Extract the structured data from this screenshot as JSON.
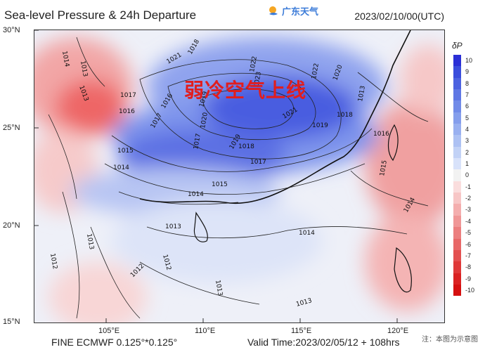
{
  "header": {
    "title": "Sea-level Pressure & 24h Departure",
    "logo_text": "广东天气",
    "datetime": "2023/02/10/00(UTC)"
  },
  "overlay_text": "弱冷空气上线",
  "axes": {
    "lat_labels": [
      "30°N",
      "25°N",
      "20°N",
      "15°N"
    ],
    "lon_labels": [
      "105°E",
      "110°E",
      "115°E",
      "120°E"
    ]
  },
  "footer": {
    "model": "FINE ECMWF 0.125°*0.125°",
    "valid_time": "Valid Time:2023/02/05/12 + 108hrs",
    "note": "注：本图为示意图"
  },
  "colorbar": {
    "title": "δP",
    "levels": [
      "10",
      "9",
      "8",
      "7",
      "6",
      "5",
      "4",
      "3",
      "2",
      "1",
      "0",
      "-1",
      "-2",
      "-3",
      "-4",
      "-5",
      "-6",
      "-7",
      "-8",
      "-9",
      "-10"
    ],
    "colors": [
      "#2b2fd6",
      "#3a4ddc",
      "#4c62e0",
      "#5f77e4",
      "#718be8",
      "#859eec",
      "#99b0f0",
      "#adc1f3",
      "#c2d2f6",
      "#d8e2fa",
      "#f2f2f2",
      "#fadddd",
      "#f7c6c6",
      "#f4aeae",
      "#f09797",
      "#ec7f7f",
      "#e86868",
      "#e35050",
      "#df3939",
      "#da2222",
      "#d51010"
    ]
  },
  "contour_labels": [
    "1014",
    "1013",
    "1013",
    "1017",
    "1016",
    "1015",
    "1014",
    "1018",
    "1021",
    "1022",
    "1023",
    "1022",
    "1020",
    "1021",
    "1019",
    "1018",
    "1017",
    "1016",
    "1019",
    "1020",
    "1017",
    "1015",
    "1014",
    "1013",
    "1013",
    "1012",
    "1012",
    "1012",
    "1013",
    "1014",
    "1014",
    "1016",
    "1015",
    "1013",
    "1019",
    "1018",
    "1017",
    "1013"
  ]
}
